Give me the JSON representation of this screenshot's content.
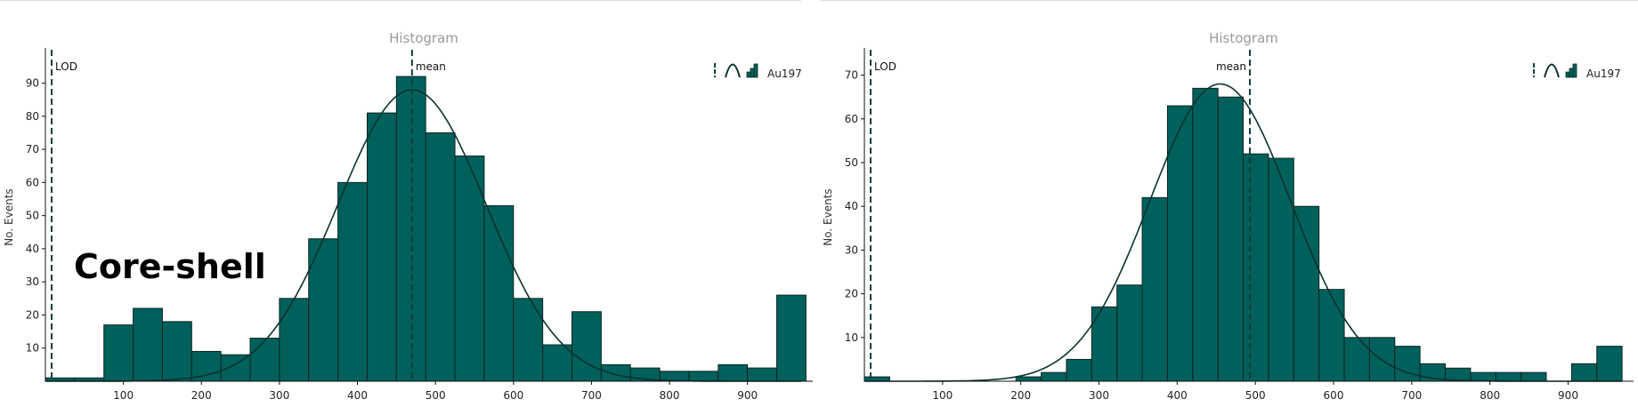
{
  "overlay_label": "Core-shell",
  "colors": {
    "bar": "#00605b",
    "bar_edge": "#0c2624",
    "curve": "#0c3230",
    "marker": "#12403d"
  },
  "chart_data": [
    {
      "type": "bar",
      "title": "Histogram",
      "ylabel": "No. Events",
      "legend": {
        "label": "Au197",
        "placement": "top-right",
        "icons": [
          "dashed-line-icon",
          "gaussian-curve-icon",
          "histogram-icon"
        ]
      },
      "xlim": [
        0,
        970
      ],
      "ylim": [
        0,
        99
      ],
      "xticks": [
        100,
        200,
        300,
        400,
        500,
        600,
        700,
        800,
        900
      ],
      "yticks": [
        10,
        20,
        30,
        40,
        50,
        60,
        70,
        80,
        90
      ],
      "bin_edges": [
        0,
        37.5,
        75,
        112.5,
        150,
        187.5,
        225,
        262.5,
        300,
        337.5,
        375,
        412.5,
        450,
        487.5,
        525,
        562.5,
        600,
        637.5,
        675,
        712.5,
        750,
        787.5,
        825,
        862.5,
        900,
        937.5,
        975
      ],
      "values": [
        1,
        1,
        17,
        22,
        18,
        9,
        8,
        13,
        25,
        43,
        60,
        81,
        92,
        75,
        68,
        53,
        25,
        11,
        21,
        5,
        4,
        3,
        3,
        5,
        4,
        26
      ],
      "fit": {
        "type": "gaussian",
        "mean": 470,
        "sd": 95,
        "peak": 88
      },
      "markers": [
        {
          "label": "LOD",
          "x": 8
        },
        {
          "label": "mean",
          "x": 470
        }
      ]
    },
    {
      "type": "bar",
      "title": "Histogram",
      "ylabel": "No. Events",
      "legend": {
        "label": "Au197",
        "placement": "top-right",
        "icons": [
          "dashed-line-icon",
          "gaussian-curve-icon",
          "histogram-icon"
        ]
      },
      "xlim": [
        0,
        970
      ],
      "ylim": [
        0,
        75
      ],
      "xticks": [
        100,
        200,
        300,
        400,
        500,
        600,
        700,
        800,
        900
      ],
      "yticks": [
        10,
        20,
        30,
        40,
        50,
        60,
        70
      ],
      "bin_edges": [
        0,
        32.3,
        64.6,
        96.9,
        129.2,
        161.5,
        193.8,
        226.1,
        258.4,
        290.7,
        323,
        355.3,
        387.6,
        419.9,
        452.2,
        484.5,
        516.8,
        549.1,
        581.4,
        613.7,
        646,
        678.3,
        710.6,
        742.9,
        775.2,
        807.5,
        839.8,
        872.1,
        904.4,
        936.7,
        969
      ],
      "values": [
        1,
        0,
        0,
        0,
        0,
        0,
        1,
        2,
        5,
        17,
        22,
        42,
        63,
        67,
        65,
        52,
        51,
        40,
        21,
        10,
        10,
        8,
        4,
        3,
        2,
        2,
        2,
        0,
        4,
        8
      ],
      "fit": {
        "type": "gaussian",
        "mean": 455,
        "sd": 90,
        "peak": 68
      },
      "markers": [
        {
          "label": "LOD",
          "x": 8
        },
        {
          "label": "mean",
          "x": 493
        }
      ]
    }
  ]
}
